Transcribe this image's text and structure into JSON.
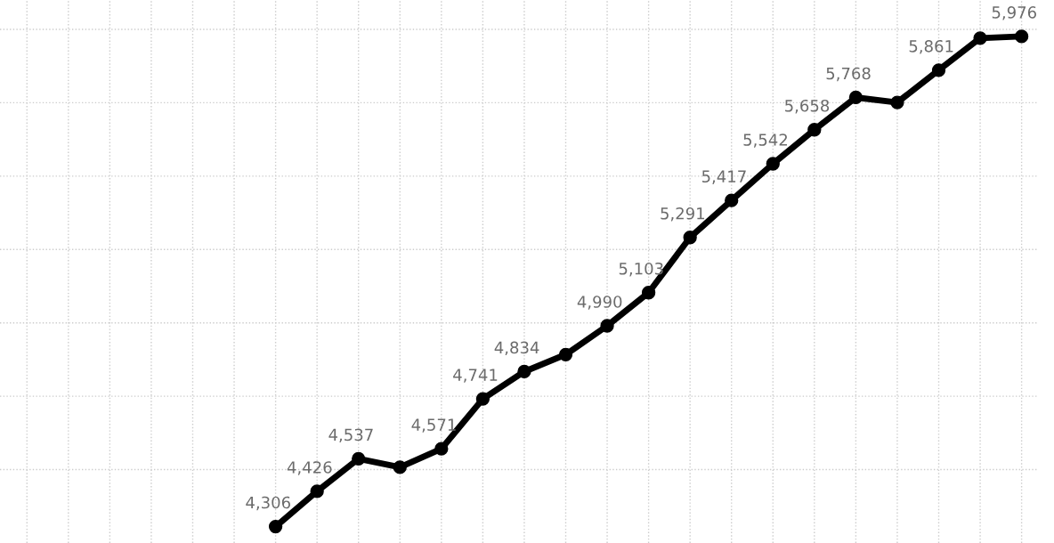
{
  "chart_data": {
    "type": "line",
    "categories": [
      null,
      null,
      null,
      null,
      null,
      null,
      null,
      null,
      null,
      null,
      null,
      null,
      null,
      null,
      null,
      null,
      null,
      null,
      null,
      null,
      null,
      null,
      null,
      null,
      null
    ],
    "series": [
      {
        "color": "#000000",
        "values": [
          null,
          null,
          null,
          null,
          null,
          null,
          4306,
          4426,
          4537,
          4508,
          4571,
          4741,
          4834,
          4892,
          4990,
          5103,
          5291,
          5417,
          5542,
          5658,
          5768,
          5751,
          5861,
          5970,
          5976
        ],
        "value_labels": [
          null,
          null,
          null,
          null,
          null,
          null,
          "4,306",
          "4,426",
          "4,537",
          null,
          "4,571",
          "4,741",
          "4,834",
          null,
          "4,990",
          "5,103",
          "5,291",
          "5,417",
          "5,542",
          "5,658",
          "5,768",
          null,
          "5,861",
          null,
          "5,976"
        ]
      }
    ],
    "ylim": [
      4250,
      6100
    ],
    "yticks": [
      {
        "value": 4500,
        "label": null
      },
      {
        "value": 4750,
        "label": null
      },
      {
        "value": 5000,
        "label": null
      },
      {
        "value": 5250,
        "label": null
      },
      {
        "value": 5500,
        "label": null
      },
      {
        "value": 5750,
        "label": null
      },
      {
        "value": 6000,
        "label": null
      }
    ],
    "grid": true,
    "marker": "circle",
    "line_style": "solid"
  }
}
